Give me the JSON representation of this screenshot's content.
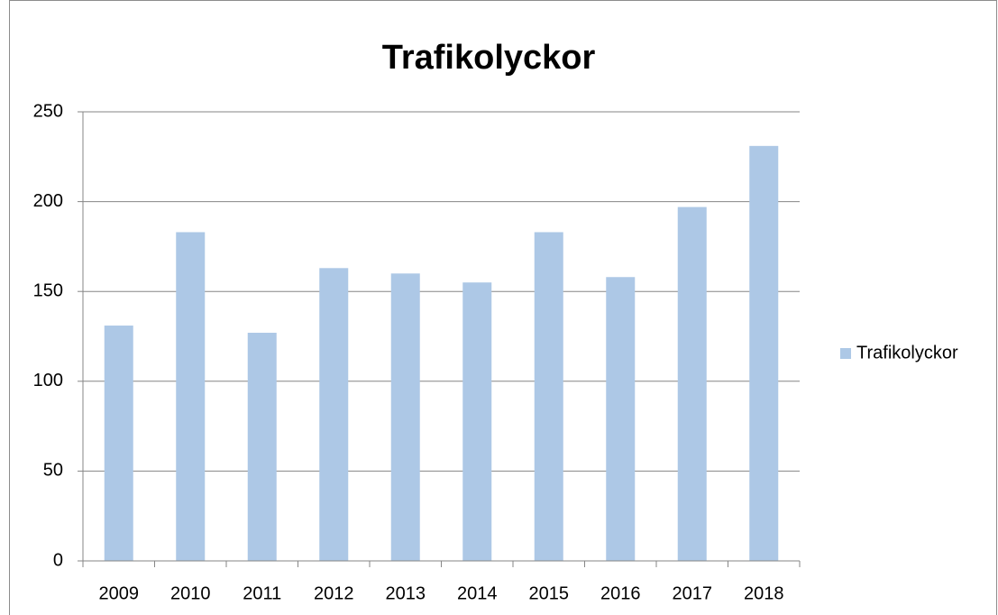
{
  "chart_data": {
    "type": "bar",
    "title": "Trafikolyckor",
    "categories": [
      "2009",
      "2010",
      "2011",
      "2012",
      "2013",
      "2014",
      "2015",
      "2016",
      "2017",
      "2018"
    ],
    "series": [
      {
        "name": "Trafikolyckor",
        "color": "#adc8e6",
        "values": [
          131,
          183,
          127,
          163,
          160,
          155,
          183,
          158,
          197,
          231
        ]
      }
    ],
    "ylim": [
      0,
      250
    ],
    "yticks": [
      0,
      50,
      100,
      150,
      200,
      250
    ],
    "grid": true,
    "legend": "right"
  }
}
